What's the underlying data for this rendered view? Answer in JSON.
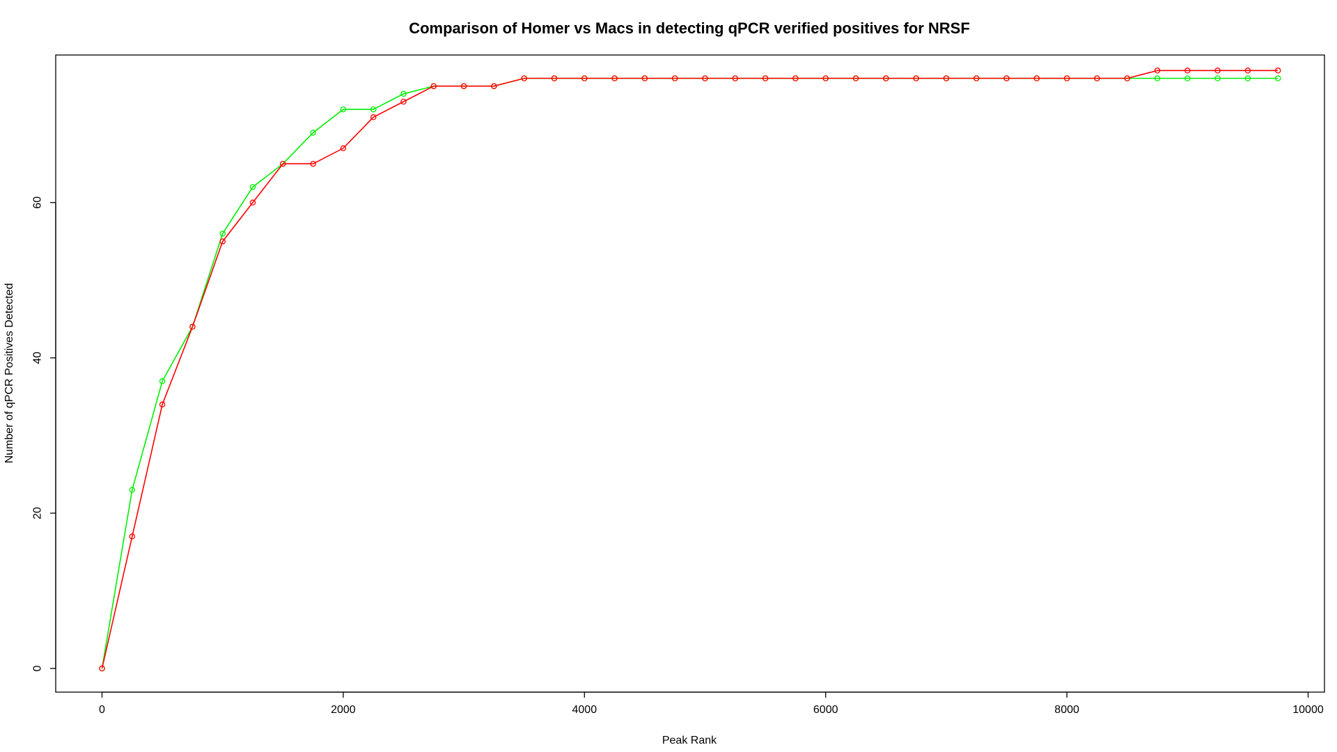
{
  "chart_data": {
    "type": "line",
    "title": "Comparison of Homer vs Macs in detecting qPCR verified positives for NRSF",
    "xlabel": "Peak Rank",
    "ylabel": "Number of qPCR Positives Detected",
    "xlim": [
      0,
      10000
    ],
    "ylim": [
      0,
      76
    ],
    "xticks": [
      0,
      2000,
      4000,
      6000,
      8000,
      10000
    ],
    "yticks": [
      0,
      20,
      40,
      60
    ],
    "grid": false,
    "legend": "none",
    "x": [
      0,
      250,
      500,
      750,
      1000,
      1250,
      1500,
      1750,
      2000,
      2250,
      2500,
      2750,
      3000,
      3250,
      3500,
      3750,
      4000,
      4250,
      4500,
      4750,
      5000,
      5250,
      5500,
      5750,
      6000,
      6250,
      6500,
      6750,
      7000,
      7250,
      7500,
      7750,
      8000,
      8250,
      8500,
      8750,
      9000,
      9250,
      9500,
      9750
    ],
    "series": [
      {
        "color": "#00ee00",
        "values": [
          0,
          23,
          37,
          44,
          56,
          62,
          65,
          69,
          72,
          72,
          74,
          75,
          75,
          75,
          76,
          76,
          76,
          76,
          76,
          76,
          76,
          76,
          76,
          76,
          76,
          76,
          76,
          76,
          76,
          76,
          76,
          76,
          76,
          76,
          76,
          76,
          76,
          76,
          76,
          76
        ]
      },
      {
        "color": "#ff0000",
        "values": [
          0,
          17,
          34,
          44,
          55,
          60,
          65,
          65,
          67,
          71,
          73,
          75,
          75,
          75,
          76,
          76,
          76,
          76,
          76,
          76,
          76,
          76,
          76,
          76,
          76,
          76,
          76,
          76,
          76,
          76,
          76,
          76,
          76,
          76,
          76,
          77,
          77,
          77,
          77,
          77
        ]
      }
    ]
  }
}
